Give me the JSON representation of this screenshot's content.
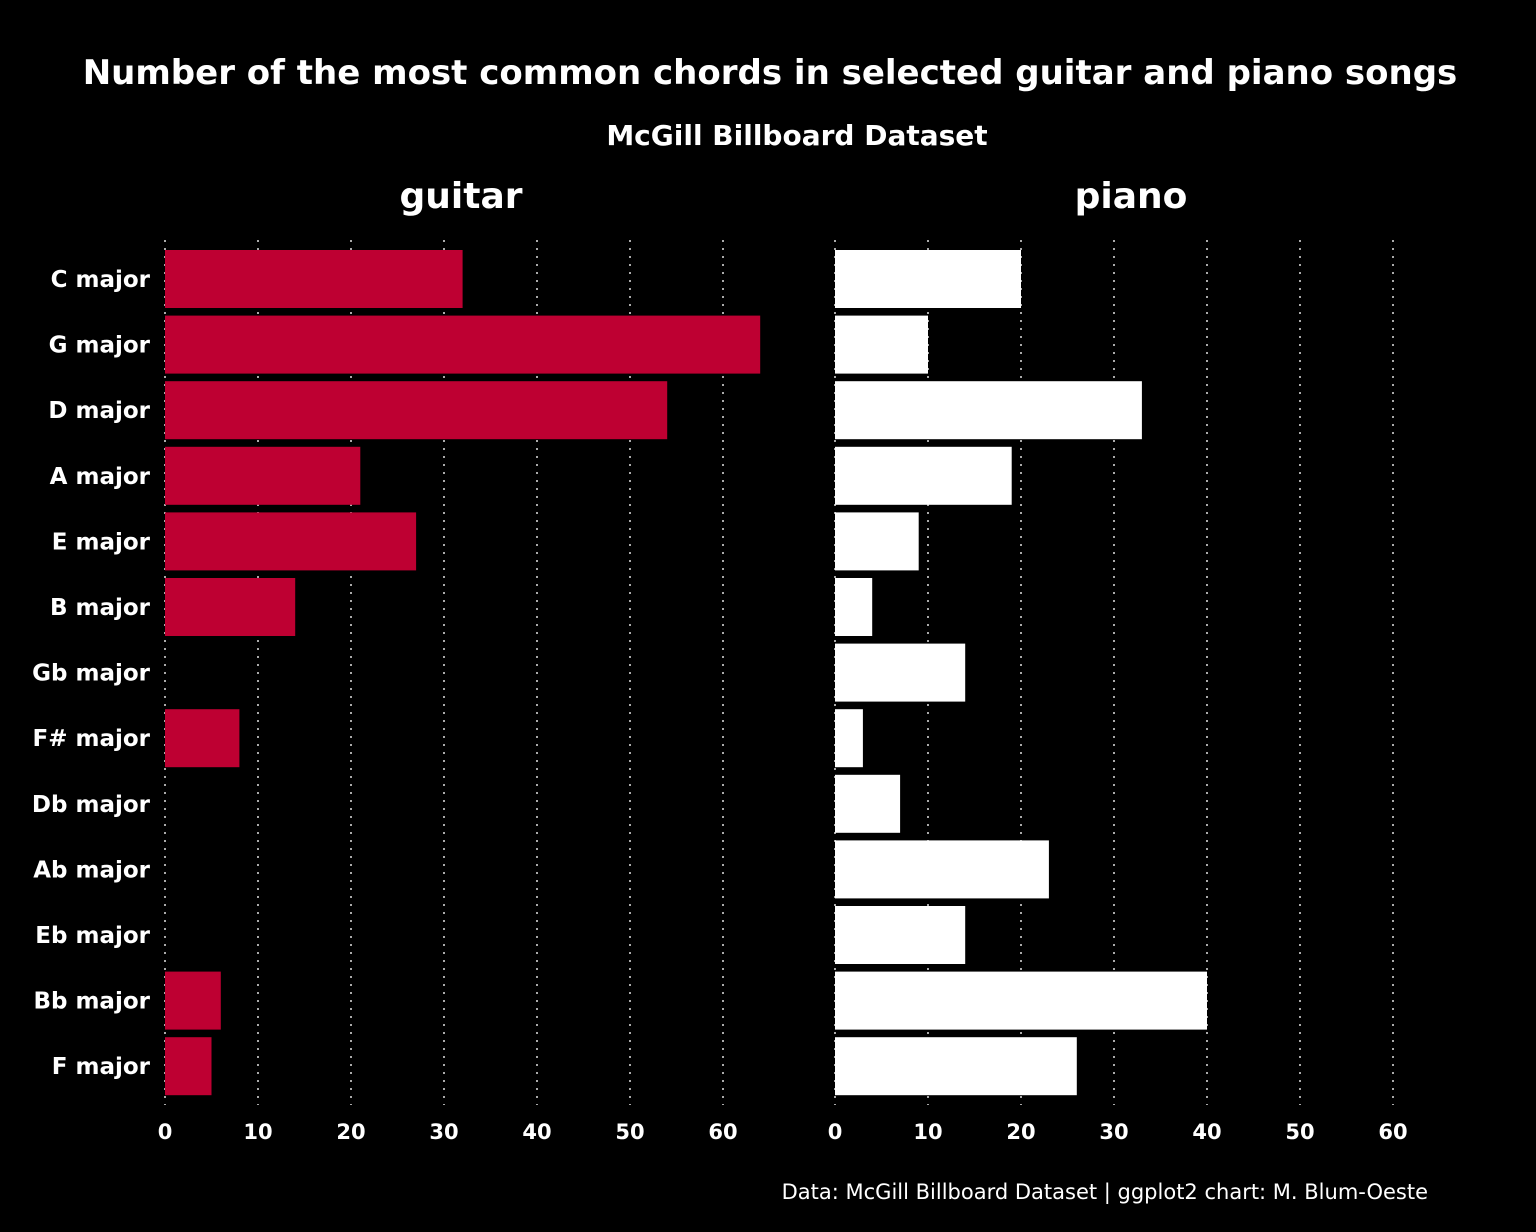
{
  "chart_data": {
    "type": "bar",
    "orientation": "horizontal",
    "title": "Number of the most common chords in selected guitar and piano songs",
    "subtitle": "McGill Billboard Dataset",
    "caption": "Data: McGill Billboard Dataset | ggplot2 chart: M. Blum-Oeste",
    "categories": [
      "C major",
      "G major",
      "D major",
      "A major",
      "E major",
      "B major",
      "Gb major",
      "F# major",
      "Db major",
      "Ab major",
      "Eb major",
      "Bb major",
      "F major"
    ],
    "xlim": [
      0,
      67
    ],
    "x_ticks": [
      0,
      10,
      20,
      30,
      40,
      50,
      60
    ],
    "grid": "vertical dotted",
    "panels": [
      {
        "name": "guitar",
        "color": "#BE0032",
        "values": [
          32,
          64,
          54,
          21,
          27,
          14,
          0,
          8,
          0,
          0,
          0,
          6,
          5
        ]
      },
      {
        "name": "piano",
        "color": "#FFFFFF",
        "values": [
          20,
          10,
          33,
          19,
          9,
          4,
          14,
          3,
          7,
          23,
          14,
          40,
          26
        ]
      }
    ]
  }
}
